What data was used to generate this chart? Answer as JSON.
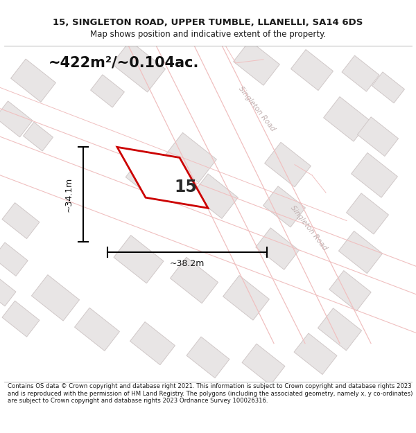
{
  "title_line1": "15, SINGLETON ROAD, UPPER TUMBLE, LLANELLI, SA14 6DS",
  "title_line2": "Map shows position and indicative extent of the property.",
  "area_text": "~422m²/~0.104ac.",
  "dim_width": "~38.2m",
  "dim_height": "~34.1m",
  "plot_number": "15",
  "footer_text": "Contains OS data © Crown copyright and database right 2021. This information is subject to Crown copyright and database rights 2023 and is reproduced with the permission of HM Land Registry. The polygons (including the associated geometry, namely x, y co-ordinates) are subject to Crown copyright and database rights 2023 Ordnance Survey 100026316.",
  "map_bg": "#fdfcfc",
  "building_fill": "#e8e5e5",
  "building_edge": "#d0c8c8",
  "road_line": "#f0c0c0",
  "plot_stroke": "#cc0000",
  "plot_fill": "#ffffff",
  "text_dark": "#1a1a1a",
  "road_label_color": "#c0b0b0",
  "dim_color": "#000000",
  "sep_color": "#aaaaaa"
}
